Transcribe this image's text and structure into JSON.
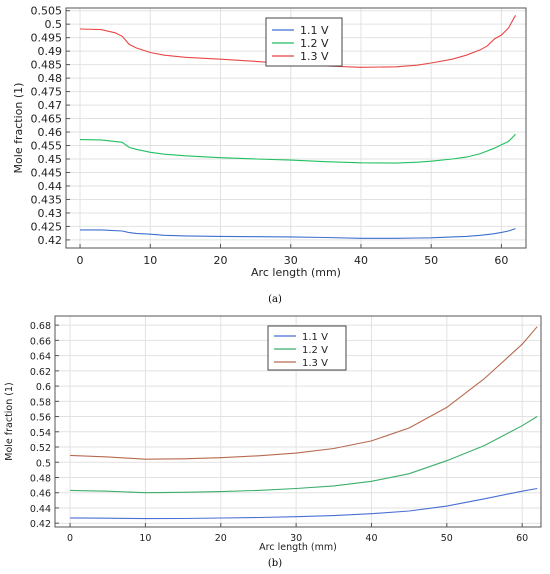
{
  "chart_data": [
    {
      "type": "line",
      "caption": "(a)",
      "xlabel": "Arc length (mm)",
      "ylabel": "Mole fraction (1)",
      "xlim": [
        -2,
        63.5
      ],
      "ylim": [
        0.417,
        0.506
      ],
      "xticks": [
        0,
        10,
        20,
        30,
        40,
        50,
        60
      ],
      "yticks": [
        0.42,
        0.425,
        0.43,
        0.435,
        0.44,
        0.445,
        0.45,
        0.455,
        0.46,
        0.465,
        0.47,
        0.475,
        0.48,
        0.485,
        0.49,
        0.495,
        0.5,
        0.505
      ],
      "ytick_labels": [
        "0.42",
        "0.425",
        "0.43",
        "0.435",
        "0.44",
        "0.445",
        "0.45",
        "0.455",
        "0.46",
        "0.465",
        "0.47",
        "0.475",
        "0.48",
        "0.485",
        "0.49",
        "0.495",
        "0.5",
        "0.505"
      ],
      "grid": true,
      "legend_position": "top-center",
      "series": [
        {
          "name": "1.1 V",
          "color": "#3d6fcf",
          "x": [
            0,
            3,
            6,
            7,
            8,
            10,
            12,
            15,
            20,
            25,
            30,
            35,
            40,
            45,
            48,
            50,
            53,
            55,
            57,
            59,
            60,
            61,
            62
          ],
          "y": [
            0.4237,
            0.4237,
            0.4233,
            0.4227,
            0.4224,
            0.4221,
            0.4217,
            0.4215,
            0.4213,
            0.4212,
            0.4211,
            0.4209,
            0.4206,
            0.4206,
            0.4207,
            0.4208,
            0.4211,
            0.4213,
            0.4217,
            0.4223,
            0.4228,
            0.4233,
            0.4242
          ]
        },
        {
          "name": "1.2 V",
          "color": "#20c060",
          "x": [
            0,
            3,
            6,
            7,
            8,
            10,
            12,
            15,
            20,
            25,
            30,
            35,
            40,
            45,
            48,
            50,
            53,
            55,
            57,
            59,
            60,
            61,
            62
          ],
          "y": [
            0.4572,
            0.4571,
            0.4562,
            0.4543,
            0.4536,
            0.4525,
            0.4518,
            0.4512,
            0.4505,
            0.45,
            0.4496,
            0.449,
            0.4486,
            0.4485,
            0.4488,
            0.4492,
            0.45,
            0.4507,
            0.452,
            0.454,
            0.4553,
            0.4565,
            0.4592
          ]
        },
        {
          "name": "1.3 V",
          "color": "#e84848",
          "x": [
            0,
            3,
            5,
            6,
            7,
            8,
            10,
            12,
            15,
            20,
            25,
            30,
            35,
            40,
            45,
            48,
            50,
            53,
            55,
            57,
            58,
            59,
            60,
            61,
            62
          ],
          "y": [
            0.4982,
            0.498,
            0.4968,
            0.4955,
            0.4925,
            0.4912,
            0.4895,
            0.4885,
            0.4877,
            0.487,
            0.4862,
            0.4853,
            0.4845,
            0.484,
            0.4842,
            0.4848,
            0.4856,
            0.487,
            0.4885,
            0.4905,
            0.492,
            0.4945,
            0.496,
            0.4985,
            0.5033
          ]
        }
      ]
    },
    {
      "type": "line",
      "caption": "(b)",
      "xlabel": "Arc length (mm)",
      "ylabel": "Mole fraction (1)",
      "xlim": [
        -2,
        62.5
      ],
      "ylim": [
        0.415,
        0.692
      ],
      "xticks": [
        0,
        10,
        20,
        30,
        40,
        50,
        60
      ],
      "yticks": [
        0.42,
        0.44,
        0.46,
        0.48,
        0.5,
        0.52,
        0.54,
        0.56,
        0.58,
        0.6,
        0.62,
        0.64,
        0.66,
        0.68
      ],
      "ytick_labels": [
        "0.42",
        "0.44",
        "0.46",
        "0.48",
        "0.5",
        "0.52",
        "0.54",
        "0.56",
        "0.58",
        "0.6",
        "0.62",
        "0.64",
        "0.66",
        "0.68"
      ],
      "grid": true,
      "legend_position": "top-center",
      "series": [
        {
          "name": "1.1 V",
          "color": "#4a6fd4",
          "x": [
            0,
            5,
            10,
            15,
            20,
            25,
            30,
            35,
            40,
            45,
            50,
            55,
            60,
            62
          ],
          "y": [
            0.427,
            0.4265,
            0.426,
            0.4262,
            0.4268,
            0.4275,
            0.4285,
            0.43,
            0.4325,
            0.436,
            0.4425,
            0.452,
            0.462,
            0.4655
          ]
        },
        {
          "name": "1.2 V",
          "color": "#3cae6a",
          "x": [
            0,
            5,
            10,
            15,
            20,
            25,
            30,
            35,
            40,
            45,
            50,
            55,
            60,
            62
          ],
          "y": [
            0.463,
            0.462,
            0.46,
            0.4605,
            0.4615,
            0.463,
            0.4655,
            0.469,
            0.475,
            0.485,
            0.502,
            0.522,
            0.548,
            0.56
          ]
        },
        {
          "name": "1.3 V",
          "color": "#b76a50",
          "x": [
            0,
            5,
            10,
            15,
            20,
            25,
            30,
            35,
            40,
            45,
            50,
            55,
            60,
            62
          ],
          "y": [
            0.509,
            0.507,
            0.504,
            0.5045,
            0.506,
            0.5085,
            0.512,
            0.518,
            0.528,
            0.545,
            0.572,
            0.61,
            0.655,
            0.678
          ]
        }
      ]
    }
  ]
}
